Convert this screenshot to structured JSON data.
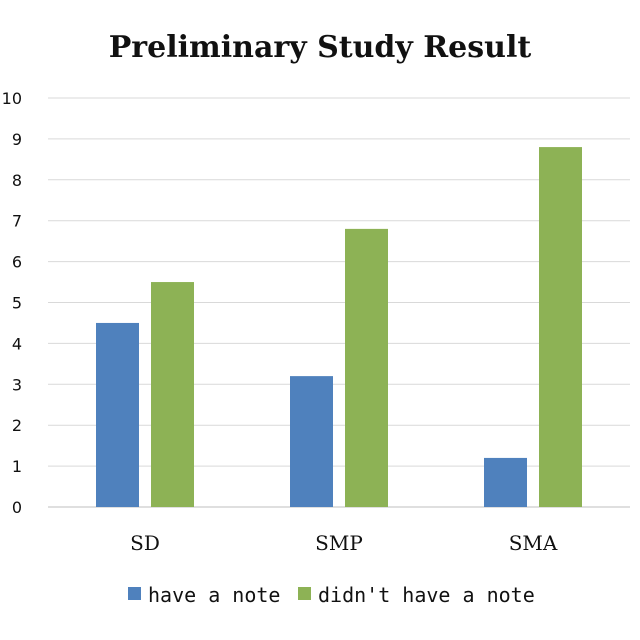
{
  "chart_data": {
    "type": "bar",
    "title": "Preliminary Study Result",
    "xlabel": "",
    "ylabel": "",
    "categories": [
      "SD",
      "SMP",
      "SMA"
    ],
    "ylim": [
      0,
      10
    ],
    "yticks": [
      0,
      1,
      2,
      3,
      4,
      5,
      6,
      7,
      8,
      9,
      10
    ],
    "grid": true,
    "legend_position": "bottom",
    "series": [
      {
        "name": "have a note",
        "color": "#4F81BD",
        "values": [
          4.5,
          3.2,
          1.2
        ]
      },
      {
        "name": "didn't have a note",
        "color": "#8DB255",
        "values": [
          5.5,
          6.8,
          8.8
        ]
      }
    ]
  }
}
